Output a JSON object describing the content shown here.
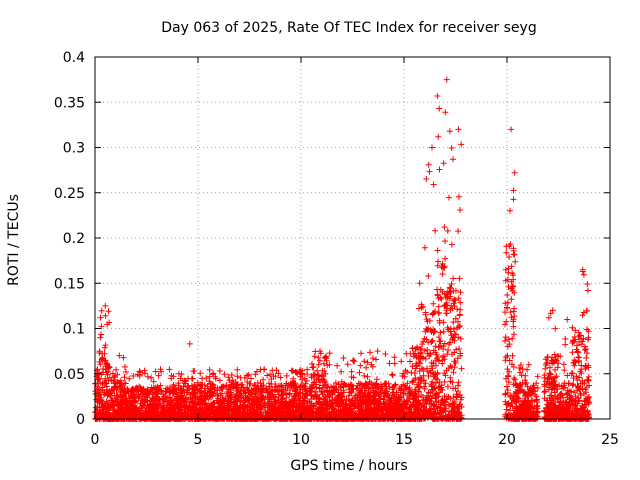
{
  "chart_data": {
    "type": "scatter",
    "title": "Day 063 of 2025, Rate Of TEC Index for receiver seyg",
    "xlabel": "GPS time / hours",
    "ylabel": "ROTI / TECUs",
    "xlim": [
      0,
      25
    ],
    "ylim": [
      0,
      0.4
    ],
    "xticks": [
      0,
      5,
      10,
      15,
      20,
      25
    ],
    "yticks": [
      0,
      0.05,
      0.1,
      0.15,
      0.2,
      0.25,
      0.3,
      0.35,
      0.4
    ],
    "grid": true,
    "marker": "+",
    "marker_color": "#ff0000",
    "series": [
      {
        "name": "ROTI",
        "segments": [
          {
            "x_range": [
              0.0,
              0.2
            ],
            "typical_max": 0.05,
            "peak": 0.055
          },
          {
            "x_range": [
              0.2,
              0.7
            ],
            "typical_max": 0.08,
            "peak": 0.125
          },
          {
            "x_range": [
              0.7,
              1.5
            ],
            "typical_max": 0.05,
            "peak": 0.07
          },
          {
            "x_range": [
              1.5,
              4.3
            ],
            "typical_max": 0.035,
            "peak": 0.055
          },
          {
            "x_range": [
              4.3,
              4.8
            ],
            "typical_max": 0.045,
            "peak": 0.083
          },
          {
            "x_range": [
              4.8,
              10.5
            ],
            "typical_max": 0.04,
            "peak": 0.055
          },
          {
            "x_range": [
              10.5,
              11.2
            ],
            "typical_max": 0.05,
            "peak": 0.075
          },
          {
            "x_range": [
              11.2,
              15.4
            ],
            "typical_max": 0.04,
            "peak": 0.075
          },
          {
            "x_range": [
              15.4,
              16.0
            ],
            "typical_max": 0.08,
            "peak": 0.15
          },
          {
            "x_range": [
              16.0,
              16.6
            ],
            "typical_max": 0.12,
            "peak": 0.3
          },
          {
            "x_range": [
              16.6,
              17.4
            ],
            "typical_max": 0.2,
            "peak": 0.375
          },
          {
            "x_range": [
              17.4,
              17.8
            ],
            "typical_max": 0.15,
            "peak": 0.32
          },
          {
            "x_range": [
              19.9,
              20.4
            ],
            "typical_max": 0.2,
            "peak": 0.32
          },
          {
            "x_range": [
              20.4,
              21.5
            ],
            "typical_max": 0.04,
            "peak": 0.06
          },
          {
            "x_range": [
              21.8,
              22.5
            ],
            "typical_max": 0.07,
            "peak": 0.12
          },
          {
            "x_range": [
              22.5,
              23.2
            ],
            "typical_max": 0.04,
            "peak": 0.11
          },
          {
            "x_range": [
              23.2,
              24.0
            ],
            "typical_max": 0.1,
            "peak": 0.165
          }
        ],
        "gaps": [
          [
            17.8,
            19.9
          ],
          [
            21.5,
            21.8
          ]
        ]
      }
    ]
  }
}
